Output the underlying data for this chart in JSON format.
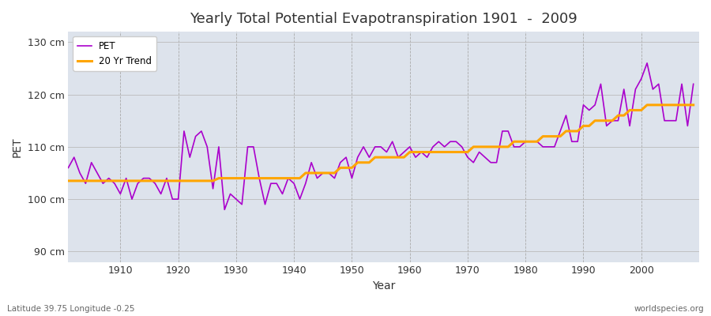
{
  "title": "Yearly Total Potential Evapotranspiration 1901  -  2009",
  "xlabel": "Year",
  "ylabel": "PET",
  "subtitle_left": "Latitude 39.75 Longitude -0.25",
  "subtitle_right": "worldspecies.org",
  "ylim": [
    88,
    132
  ],
  "yticks": [
    90,
    100,
    110,
    120,
    130
  ],
  "ytick_labels": [
    "90 cm",
    "100 cm",
    "110 cm",
    "120 cm",
    "130 cm"
  ],
  "xlim": [
    1901,
    2010
  ],
  "bg_color": "#dde3ec",
  "fig_color": "#ffffff",
  "pet_color": "#aa00cc",
  "trend_color": "#ffa500",
  "years": [
    1901,
    1902,
    1903,
    1904,
    1905,
    1906,
    1907,
    1908,
    1909,
    1910,
    1911,
    1912,
    1913,
    1914,
    1915,
    1916,
    1917,
    1918,
    1919,
    1920,
    1921,
    1922,
    1923,
    1924,
    1925,
    1926,
    1927,
    1928,
    1929,
    1930,
    1931,
    1932,
    1933,
    1934,
    1935,
    1936,
    1937,
    1938,
    1939,
    1940,
    1941,
    1942,
    1943,
    1944,
    1945,
    1946,
    1947,
    1948,
    1949,
    1950,
    1951,
    1952,
    1953,
    1954,
    1955,
    1956,
    1957,
    1958,
    1959,
    1960,
    1961,
    1962,
    1963,
    1964,
    1965,
    1966,
    1967,
    1968,
    1969,
    1970,
    1971,
    1972,
    1973,
    1974,
    1975,
    1976,
    1977,
    1978,
    1979,
    1980,
    1981,
    1982,
    1983,
    1984,
    1985,
    1986,
    1987,
    1988,
    1989,
    1990,
    1991,
    1992,
    1993,
    1994,
    1995,
    1996,
    1997,
    1998,
    1999,
    2000,
    2001,
    2002,
    2003,
    2004,
    2005,
    2006,
    2007,
    2008,
    2009
  ],
  "pet_values": [
    106,
    108,
    105,
    103,
    107,
    105,
    103,
    104,
    103,
    101,
    104,
    100,
    103,
    104,
    104,
    103,
    101,
    104,
    100,
    100,
    113,
    108,
    112,
    113,
    110,
    102,
    110,
    98,
    101,
    100,
    99,
    110,
    110,
    104,
    99,
    103,
    103,
    101,
    104,
    103,
    100,
    103,
    107,
    104,
    105,
    105,
    104,
    107,
    108,
    104,
    108,
    110,
    108,
    110,
    110,
    109,
    111,
    108,
    109,
    110,
    108,
    109,
    108,
    110,
    111,
    110,
    111,
    111,
    110,
    108,
    107,
    109,
    108,
    107,
    107,
    113,
    113,
    110,
    110,
    111,
    111,
    111,
    110,
    110,
    110,
    113,
    116,
    111,
    111,
    118,
    117,
    118,
    122,
    114,
    115,
    115,
    121,
    114,
    121,
    123,
    126,
    121,
    122,
    115,
    115,
    115,
    122,
    114,
    122
  ],
  "trend_values": [
    103.5,
    103.5,
    103.5,
    103.5,
    103.5,
    103.5,
    103.5,
    103.5,
    103.5,
    103.5,
    103.5,
    103.5,
    103.5,
    103.5,
    103.5,
    103.5,
    103.5,
    103.5,
    103.5,
    103.5,
    103.5,
    103.5,
    103.5,
    103.5,
    103.5,
    103.5,
    104,
    104,
    104,
    104,
    104,
    104,
    104,
    104,
    104,
    104,
    104,
    104,
    104,
    104,
    104,
    105,
    105,
    105,
    105,
    105,
    105,
    106,
    106,
    106,
    107,
    107,
    107,
    108,
    108,
    108,
    108,
    108,
    108,
    109,
    109,
    109,
    109,
    109,
    109,
    109,
    109,
    109,
    109,
    109,
    110,
    110,
    110,
    110,
    110,
    110,
    110,
    111,
    111,
    111,
    111,
    111,
    112,
    112,
    112,
    112,
    113,
    113,
    113,
    114,
    114,
    115,
    115,
    115,
    115,
    116,
    116,
    117,
    117,
    117,
    118,
    118,
    118,
    118,
    118,
    118,
    118,
    118,
    118
  ]
}
